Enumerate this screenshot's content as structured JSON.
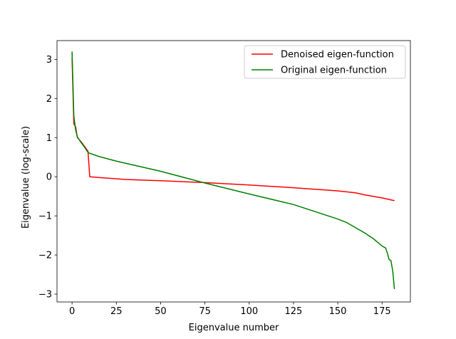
{
  "chart_data": {
    "type": "line",
    "title": "",
    "xlabel": "Eigenvalue number",
    "ylabel": "Eigenvalue (log-scale)",
    "xlim": [
      -8.5,
      191
    ],
    "ylim": [
      -3.2,
      3.48
    ],
    "xticks": [
      0,
      25,
      50,
      75,
      100,
      125,
      150,
      175
    ],
    "yticks": [
      -3,
      -2,
      -1,
      0,
      1,
      2,
      3
    ],
    "grid": false,
    "legend_position": "top-right",
    "series": [
      {
        "name": "Denoised eigen-function",
        "color": "#ff0000",
        "x": [
          0,
          1,
          2,
          3,
          5,
          7,
          9,
          10,
          15,
          25,
          30,
          50,
          75,
          100,
          125,
          150,
          160,
          165,
          175,
          182
        ],
        "y": [
          3.05,
          1.35,
          1.28,
          1.0,
          0.9,
          0.78,
          0.65,
          0.0,
          -0.02,
          -0.05,
          -0.07,
          -0.1,
          -0.15,
          -0.21,
          -0.28,
          -0.36,
          -0.41,
          -0.46,
          -0.54,
          -0.61
        ]
      },
      {
        "name": "Original eigen-function",
        "color": "#008000",
        "x": [
          0,
          1,
          2,
          3,
          5,
          7,
          9,
          10,
          15,
          25,
          50,
          75,
          100,
          125,
          150,
          155,
          160,
          165,
          170,
          175,
          177,
          178,
          179,
          180,
          181,
          182
        ],
        "y": [
          3.2,
          1.55,
          1.2,
          1.02,
          0.88,
          0.76,
          0.62,
          0.6,
          0.52,
          0.4,
          0.14,
          -0.16,
          -0.44,
          -0.71,
          -1.08,
          -1.17,
          -1.3,
          -1.43,
          -1.58,
          -1.77,
          -1.82,
          -1.95,
          -2.12,
          -2.14,
          -2.4,
          -2.87
        ]
      }
    ]
  }
}
